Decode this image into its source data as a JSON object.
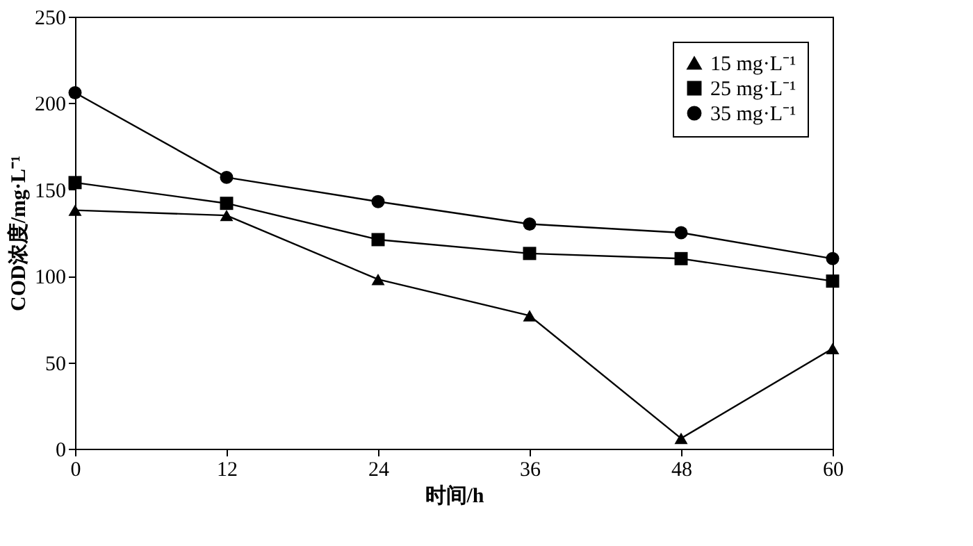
{
  "chart_data": {
    "type": "line",
    "xlabel": "时间/h",
    "ylabel": "COD浓度/mg·L⁻¹",
    "x": [
      0,
      12,
      24,
      36,
      48,
      60
    ],
    "series": [
      {
        "name": "15 mg·L⁻¹",
        "color": "#000000",
        "marker": "triangle",
        "values": [
          138,
          135,
          98,
          77,
          6,
          58
        ]
      },
      {
        "name": "25 mg·L⁻¹",
        "color": "#000000",
        "marker": "square",
        "values": [
          154,
          142,
          121,
          113,
          110,
          97
        ]
      },
      {
        "name": "35 mg·L⁻¹",
        "color": "#000000",
        "marker": "circle",
        "values": [
          206,
          157,
          143,
          130,
          125,
          110
        ]
      }
    ],
    "xlim": [
      0,
      60
    ],
    "xticks": [
      0,
      12,
      24,
      36,
      48,
      60
    ],
    "ylim": [
      0,
      250
    ],
    "yticks": [
      0,
      50,
      100,
      150,
      200,
      250
    ],
    "grid": false,
    "legend": "top right",
    "line_style": "solid"
  }
}
